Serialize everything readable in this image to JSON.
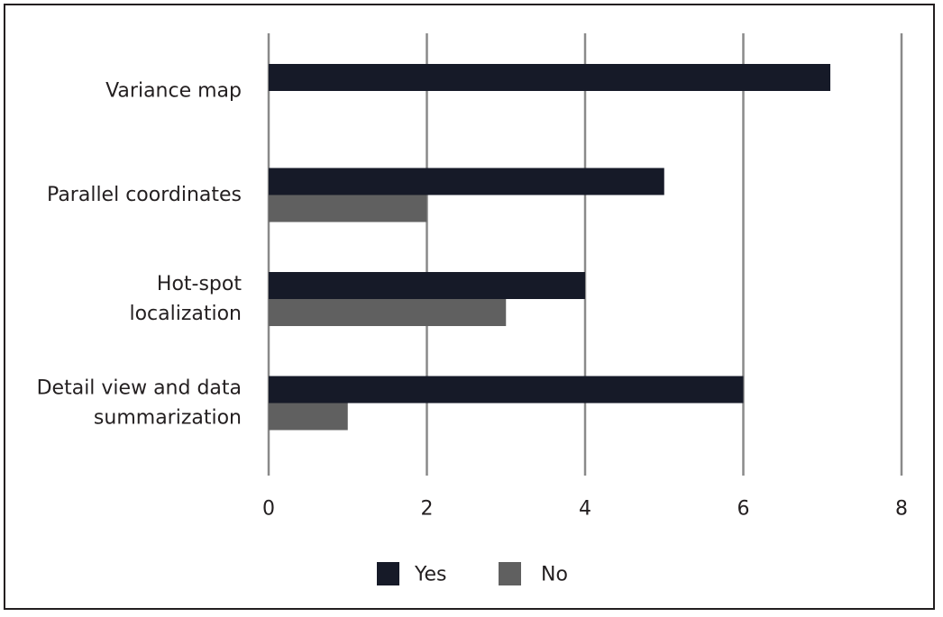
{
  "chart_data": {
    "type": "bar",
    "orientation": "horizontal",
    "categories": [
      [
        "Variance map"
      ],
      [
        "Parallel coordinates"
      ],
      [
        "Hot-spot",
        "localization"
      ],
      [
        "Detail view and data",
        "summarization"
      ]
    ],
    "series": [
      {
        "name": "Yes",
        "color": "#161a28",
        "values": [
          7.1,
          5,
          4,
          6
        ]
      },
      {
        "name": "No",
        "color": "#606060",
        "values": [
          0,
          2,
          3,
          1
        ]
      }
    ],
    "xlim": [
      0,
      8
    ],
    "xticks": [
      0,
      2,
      4,
      6,
      8
    ],
    "grid": "vertical",
    "legend": "bottom-center",
    "title": "",
    "xlabel": "",
    "ylabel": ""
  }
}
